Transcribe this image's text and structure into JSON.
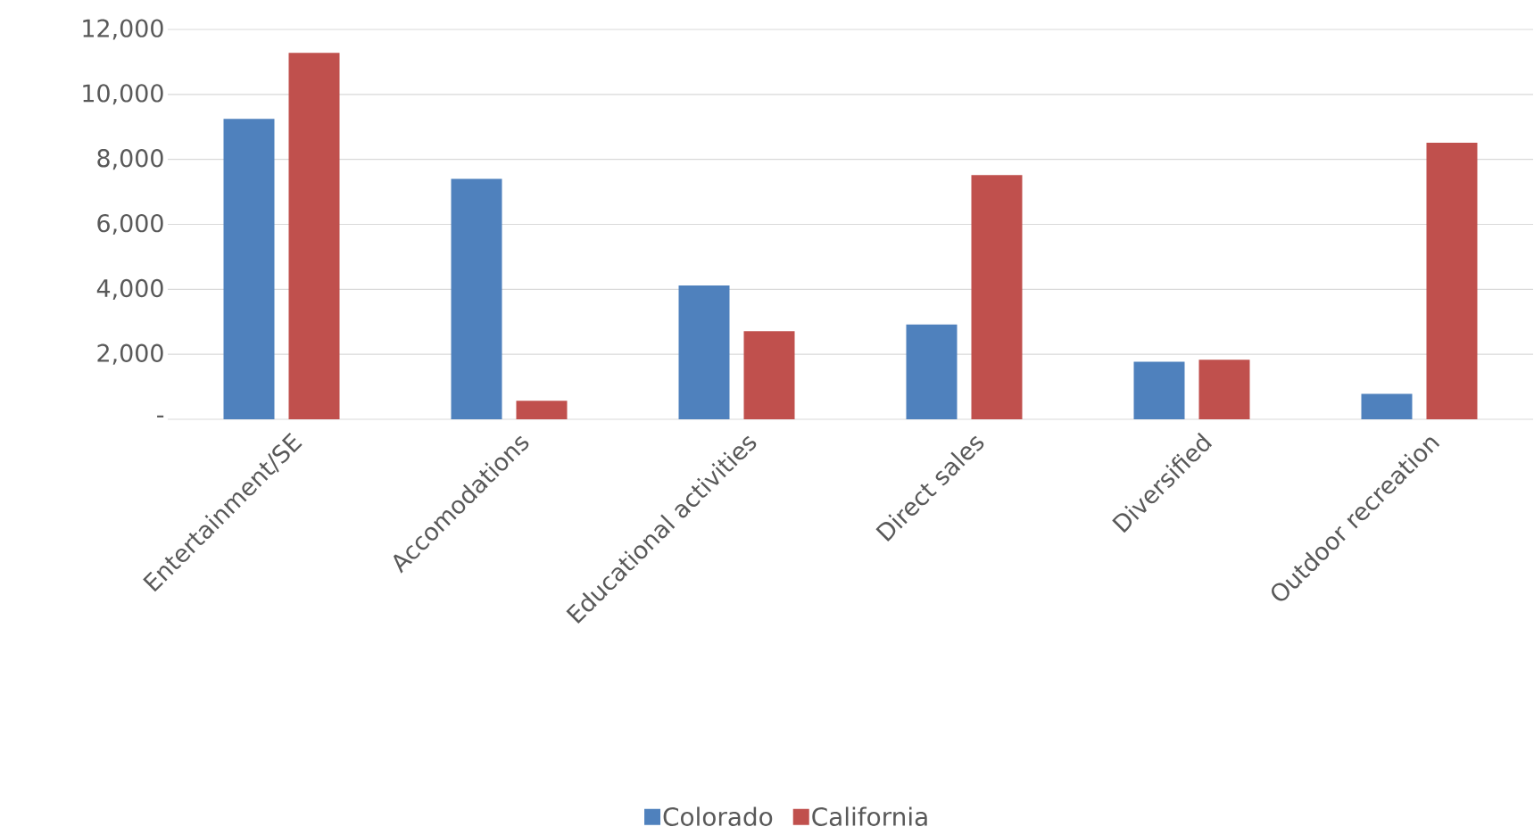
{
  "chart_data": {
    "type": "bar",
    "categories": [
      "Entertainment/SE",
      "Accomodations",
      "Educational activities",
      "Direct sales",
      "Diversified",
      "Outdoor recreation"
    ],
    "series": [
      {
        "name": "Colorado",
        "color": "#4f81bd",
        "values": [
          9250,
          7400,
          4120,
          2920,
          1770,
          780
        ]
      },
      {
        "name": "California",
        "color": "#c0504d",
        "values": [
          11280,
          570,
          2710,
          7520,
          1830,
          8510
        ]
      }
    ],
    "ylim": [
      0,
      12000
    ],
    "yticks": [
      {
        "value": 0,
        "label": "-"
      },
      {
        "value": 2000,
        "label": "2,000"
      },
      {
        "value": 4000,
        "label": "4,000"
      },
      {
        "value": 6000,
        "label": "6,000"
      },
      {
        "value": 8000,
        "label": "8,000"
      },
      {
        "value": 10000,
        "label": "10,000"
      },
      {
        "value": 12000,
        "label": "12,000"
      }
    ],
    "grid": "y",
    "legend": "bottom"
  }
}
